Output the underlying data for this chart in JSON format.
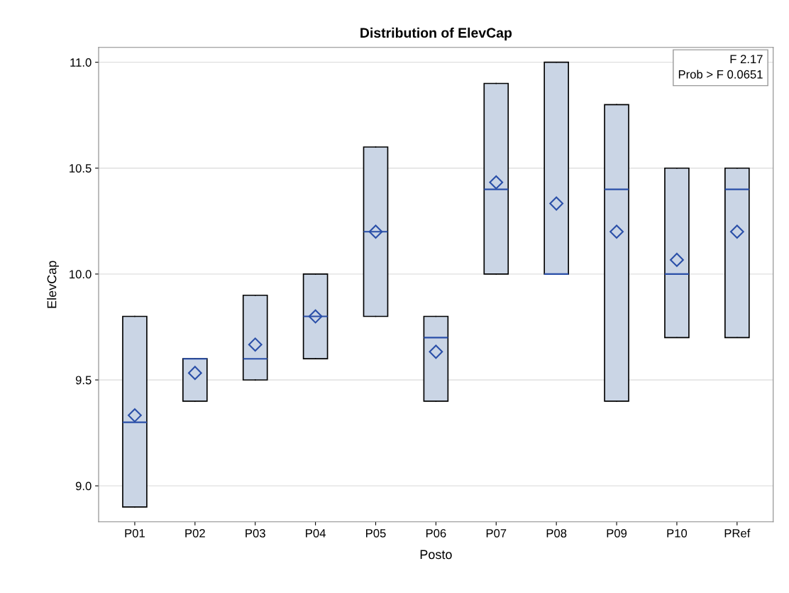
{
  "chart_data": {
    "type": "box",
    "title": "Distribution of ElevCap",
    "xlabel": "Posto",
    "ylabel": "ElevCap",
    "categories": [
      "P01",
      "P02",
      "P03",
      "P04",
      "P05",
      "P06",
      "P07",
      "P08",
      "P09",
      "P10",
      "PRef"
    ],
    "boxes": [
      {
        "low": 8.9,
        "q1": 8.9,
        "median": 9.3,
        "q3": 9.8,
        "high": 9.8,
        "mean": 9.333
      },
      {
        "low": 9.4,
        "q1": 9.4,
        "median": 9.6,
        "q3": 9.6,
        "high": 9.6,
        "mean": 9.533
      },
      {
        "low": 9.5,
        "q1": 9.5,
        "median": 9.6,
        "q3": 9.9,
        "high": 9.9,
        "mean": 9.667
      },
      {
        "low": 9.6,
        "q1": 9.6,
        "median": 9.8,
        "q3": 10.0,
        "high": 10.0,
        "mean": 9.8
      },
      {
        "low": 9.8,
        "q1": 9.8,
        "median": 10.2,
        "q3": 10.6,
        "high": 10.6,
        "mean": 10.2
      },
      {
        "low": 9.4,
        "q1": 9.4,
        "median": 9.7,
        "q3": 9.8,
        "high": 9.8,
        "mean": 9.633
      },
      {
        "low": 10.0,
        "q1": 10.0,
        "median": 10.4,
        "q3": 10.9,
        "high": 10.9,
        "mean": 10.433
      },
      {
        "low": 10.0,
        "q1": 10.0,
        "median": 10.0,
        "q3": 11.0,
        "high": 11.0,
        "mean": 10.333
      },
      {
        "low": 9.4,
        "q1": 9.4,
        "median": 10.4,
        "q3": 10.8,
        "high": 10.8,
        "mean": 10.2
      },
      {
        "low": 9.7,
        "q1": 9.7,
        "median": 10.0,
        "q3": 10.5,
        "high": 10.5,
        "mean": 10.067
      },
      {
        "low": 9.7,
        "q1": 9.7,
        "median": 10.4,
        "q3": 10.5,
        "high": 10.5,
        "mean": 10.2
      }
    ],
    "color": "#cad5e5",
    "ylim": [
      8.83,
      11.07
    ],
    "yticks": [
      {
        "value": 9.0,
        "label": "9.0"
      },
      {
        "value": 9.5,
        "label": "9.5"
      },
      {
        "value": 10.0,
        "label": "10.0"
      },
      {
        "value": 10.5,
        "label": "10.5"
      },
      {
        "value": 11.0,
        "label": "11.0"
      }
    ],
    "grid": "y",
    "marker": "diamond",
    "annotations": [
      "F 2.17",
      "Prob > F 0.0651"
    ]
  }
}
